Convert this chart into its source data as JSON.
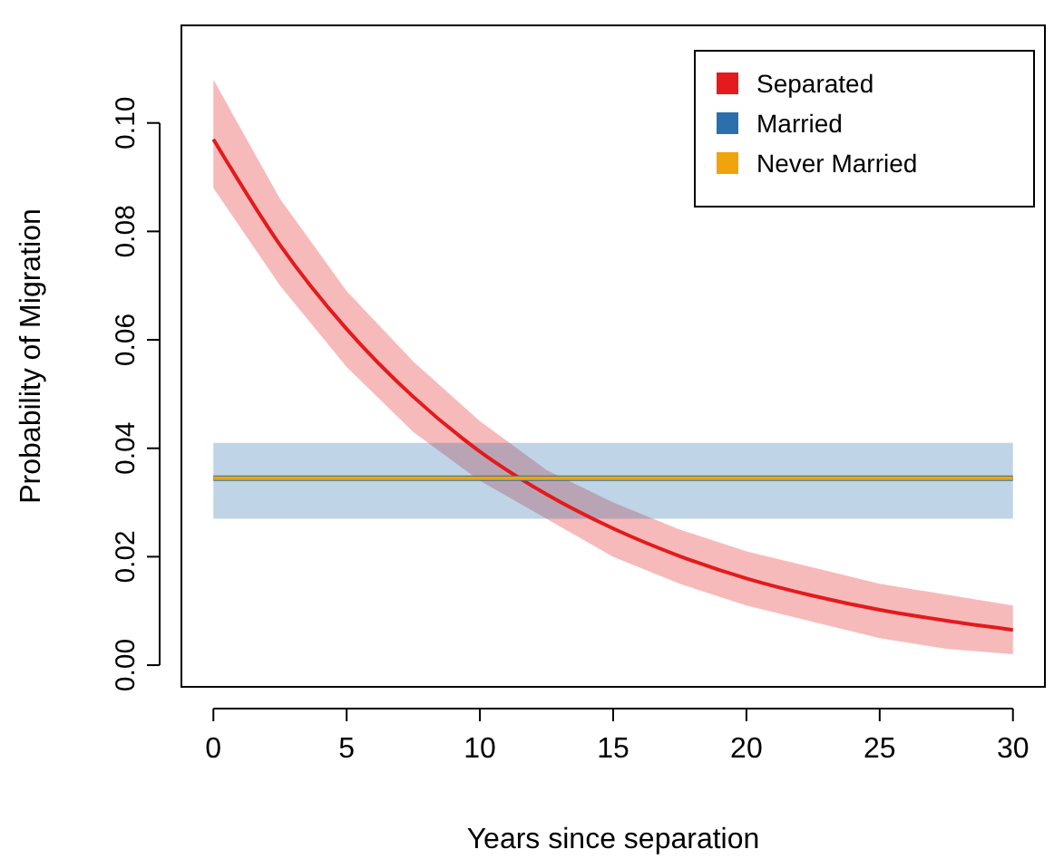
{
  "chart_data": {
    "type": "line",
    "xlabel": "Years since separation",
    "ylabel": "Probability of Migration",
    "xlim": [
      -1.2,
      31.2
    ],
    "ylim": [
      -0.004,
      0.118
    ],
    "xticks": [
      0,
      5,
      10,
      15,
      20,
      25,
      30
    ],
    "yticks": [
      {
        "value": 0,
        "label": "0.00"
      },
      0.02,
      0.04,
      0.06,
      0.08,
      {
        "value": 0.1,
        "label": "0.10"
      }
    ],
    "legend": "top right",
    "series": [
      {
        "name": "Separated",
        "color": "#e41a1c",
        "x": [
          0,
          2.5,
          5,
          7.5,
          10,
          12.5,
          15,
          17.5,
          20,
          22.5,
          25,
          27.5,
          30
        ],
        "values": [
          0.097,
          0.0775,
          0.062,
          0.0495,
          0.0394,
          0.0315,
          0.0252,
          0.0201,
          0.016,
          0.0128,
          0.0102,
          0.0082,
          0.0065
        ],
        "lower": [
          0.088,
          0.07,
          0.055,
          0.043,
          0.034,
          0.027,
          0.02,
          0.015,
          0.011,
          0.008,
          0.005,
          0.003,
          0.002
        ],
        "upper": [
          0.108,
          0.086,
          0.069,
          0.056,
          0.045,
          0.036,
          0.03,
          0.025,
          0.021,
          0.018,
          0.015,
          0.013,
          0.011
        ]
      },
      {
        "name": "Married",
        "color": "#2c6fad",
        "x": [
          0,
          30
        ],
        "values": [
          0.0345,
          0.0345
        ],
        "lower": [
          0.027,
          0.027
        ],
        "upper": [
          0.041,
          0.041
        ]
      },
      {
        "name": "Never Married",
        "color": "#f0a30a",
        "x": [
          0,
          30
        ],
        "values": [
          0.0345,
          0.0345
        ]
      }
    ]
  }
}
